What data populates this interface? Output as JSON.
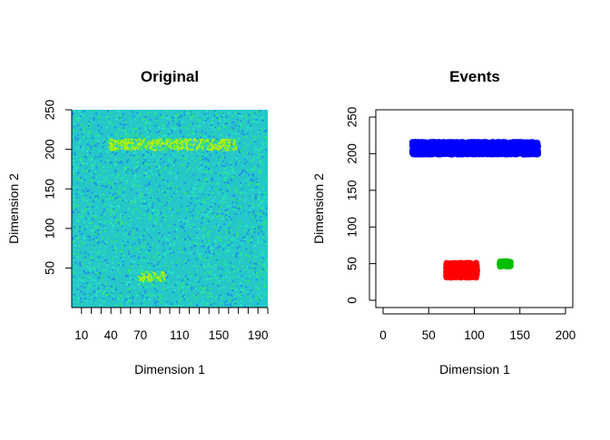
{
  "chart_data": [
    {
      "type": "heatmap",
      "title": "Original",
      "xlabel": "Dimension 1",
      "ylabel": "Dimension 2",
      "xlim": [
        0,
        200
      ],
      "ylim": [
        0,
        250
      ],
      "x_ticks": [
        10,
        40,
        70,
        110,
        150,
        190
      ],
      "y_ticks": [
        50,
        100,
        150,
        200,
        250
      ],
      "colors": {
        "background": "#26c7c9",
        "noise_low": "#1f8fe6",
        "noise_mid": "#27e6c3",
        "noise_high": "#2ee67a",
        "event": "#b7f000"
      },
      "events": [
        {
          "x_range": [
            37,
            168
          ],
          "y_range": [
            200,
            214
          ]
        },
        {
          "x_range": [
            67,
            95
          ],
          "y_range": [
            34,
            46
          ]
        }
      ]
    },
    {
      "type": "scatter",
      "title": "Events",
      "xlabel": "Dimension 1",
      "ylabel": "Dimension 2",
      "xlim": [
        0,
        200
      ],
      "ylim": [
        0,
        250
      ],
      "x_ticks": [
        0,
        50,
        100,
        150,
        200
      ],
      "y_ticks": [
        0,
        50,
        100,
        150,
        200,
        250
      ],
      "series": [
        {
          "color": "#0000ff",
          "x_range": [
            32,
            170
          ],
          "y_range": [
            199,
            216
          ]
        },
        {
          "color": "#ff0000",
          "x_range": [
            69,
            103
          ],
          "y_range": [
            31,
            51
          ]
        },
        {
          "color": "#00bf00",
          "x_range": [
            128,
            140
          ],
          "y_range": [
            46,
            53
          ]
        }
      ]
    }
  ]
}
